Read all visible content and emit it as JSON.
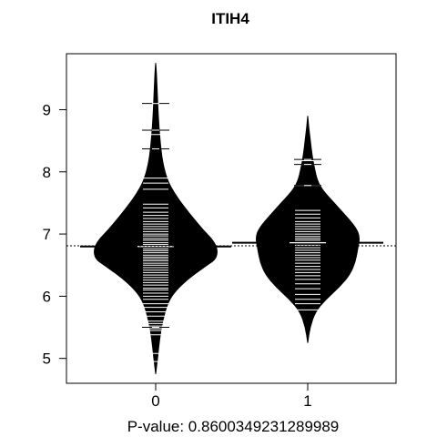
{
  "chart_data": {
    "type": "beanplot",
    "title": "ITIH4",
    "xlabel": "P-value: 0.8600349231289989",
    "ylabel": "",
    "categories": [
      "0",
      "1"
    ],
    "ylim": [
      4.6,
      9.9
    ],
    "yticks": [
      5,
      6,
      7,
      8,
      9
    ],
    "ytick_labels": [
      "5",
      "6",
      "7",
      "8",
      "9"
    ],
    "overall_mean": 6.81,
    "series": [
      {
        "group": "0",
        "mean": 6.8,
        "density_y": [
          4.75,
          5.0,
          5.3,
          5.6,
          5.9,
          6.1,
          6.3,
          6.5,
          6.6,
          6.75,
          6.9,
          7.05,
          7.25,
          7.45,
          7.65,
          7.85,
          8.1,
          8.4,
          8.7,
          9.0,
          9.3,
          9.6,
          9.75
        ],
        "density_halfwidth": [
          0.0,
          0.025,
          0.05,
          0.09,
          0.16,
          0.27,
          0.45,
          0.68,
          0.8,
          0.82,
          0.76,
          0.64,
          0.5,
          0.37,
          0.25,
          0.16,
          0.1,
          0.065,
          0.045,
          0.03,
          0.02,
          0.01,
          0.0
        ],
        "observations": [
          4.95,
          5.08,
          5.38,
          5.45,
          5.48,
          5.52,
          5.56,
          5.6,
          5.68,
          5.75,
          5.82,
          5.88,
          5.95,
          6.0,
          6.05,
          6.1,
          6.13,
          6.18,
          6.22,
          6.26,
          6.3,
          6.34,
          6.38,
          6.42,
          6.46,
          6.5,
          6.53,
          6.57,
          6.6,
          6.63,
          6.66,
          6.7,
          6.73,
          6.76,
          6.8,
          6.83,
          6.86,
          6.9,
          6.93,
          6.97,
          7.0,
          7.04,
          7.08,
          7.12,
          7.16,
          7.2,
          7.25,
          7.3,
          7.35,
          7.42,
          7.48,
          7.72,
          7.82,
          7.9,
          8.37,
          8.6,
          8.67,
          9.1
        ],
        "extreme_observations": [
          9.1,
          8.67,
          8.37,
          5.5
        ]
      },
      {
        "group": "1",
        "mean": 6.86,
        "density_y": [
          5.25,
          5.5,
          5.75,
          5.95,
          6.15,
          6.35,
          6.55,
          6.75,
          6.95,
          7.1,
          7.3,
          7.5,
          7.7,
          7.85,
          8.05,
          8.25,
          8.5,
          8.7,
          8.9
        ],
        "density_halfwidth": [
          0.0,
          0.03,
          0.1,
          0.24,
          0.42,
          0.56,
          0.63,
          0.66,
          0.69,
          0.64,
          0.5,
          0.35,
          0.2,
          0.13,
          0.09,
          0.06,
          0.035,
          0.015,
          0.0
        ],
        "observations": [
          5.78,
          5.88,
          5.95,
          6.03,
          6.12,
          6.2,
          6.27,
          6.33,
          6.38,
          6.43,
          6.48,
          6.53,
          6.58,
          6.62,
          6.66,
          6.7,
          6.74,
          6.78,
          6.82,
          6.86,
          6.9,
          6.93,
          6.96,
          7.0,
          7.04,
          7.08,
          7.12,
          7.16,
          7.2,
          7.26,
          7.32,
          7.38,
          7.78,
          8.12,
          8.18,
          8.2
        ],
        "extreme_observations": [
          8.2,
          8.12,
          7.78
        ]
      }
    ]
  }
}
